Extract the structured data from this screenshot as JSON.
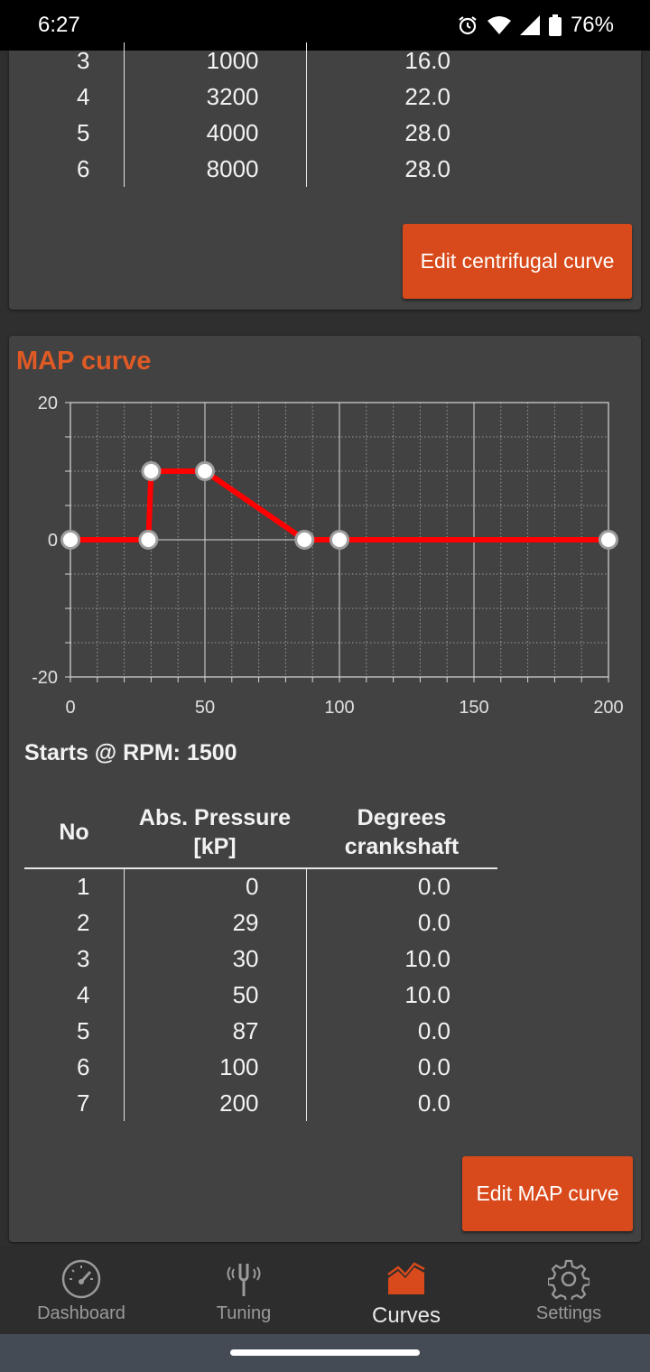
{
  "status_bar": {
    "time": "6:27",
    "battery": "76%"
  },
  "centrifugal": {
    "rows": [
      [
        "3",
        "1000",
        "16.0"
      ],
      [
        "4",
        "3200",
        "22.0"
      ],
      [
        "5",
        "4000",
        "28.0"
      ],
      [
        "6",
        "8000",
        "28.0"
      ]
    ],
    "edit_label": "Edit centrifugal curve"
  },
  "map": {
    "title": "MAP curve",
    "starts_text": "Starts @ RPM: 1500",
    "headers": {
      "no": "No",
      "pressure_line1": "Abs. Pressure",
      "pressure_line2": "[kP]",
      "degrees_line1": "Degrees",
      "degrees_line2": "crankshaft"
    },
    "rows": [
      [
        "1",
        "0",
        "0.0"
      ],
      [
        "2",
        "29",
        "0.0"
      ],
      [
        "3",
        "30",
        "10.0"
      ],
      [
        "4",
        "50",
        "10.0"
      ],
      [
        "5",
        "87",
        "0.0"
      ],
      [
        "6",
        "100",
        "0.0"
      ],
      [
        "7",
        "200",
        "0.0"
      ]
    ],
    "edit_label": "Edit MAP curve"
  },
  "chart_data": {
    "type": "line",
    "x": [
      0,
      29,
      30,
      50,
      87,
      100,
      200
    ],
    "y": [
      0,
      0,
      10,
      10,
      0,
      0,
      0
    ],
    "xlim": [
      0,
      200
    ],
    "ylim": [
      -20,
      20
    ],
    "x_ticks": [
      "0",
      "50",
      "100",
      "150",
      "200"
    ],
    "y_ticks": [
      "-20",
      "0",
      "20"
    ],
    "grid": true,
    "line_color": "#ff0000",
    "point_fill": "#ffffff"
  },
  "nav": {
    "items": [
      {
        "label": "Dashboard",
        "icon": "speedometer-icon"
      },
      {
        "label": "Tuning",
        "icon": "tuning-fork-icon"
      },
      {
        "label": "Curves",
        "icon": "area-chart-icon"
      },
      {
        "label": "Settings",
        "icon": "gear-icon"
      }
    ],
    "active": "Curves"
  },
  "colors": {
    "accent": "#d84a1b",
    "title": "#e05a25",
    "card": "#424242",
    "background": "#2f2f2f"
  }
}
